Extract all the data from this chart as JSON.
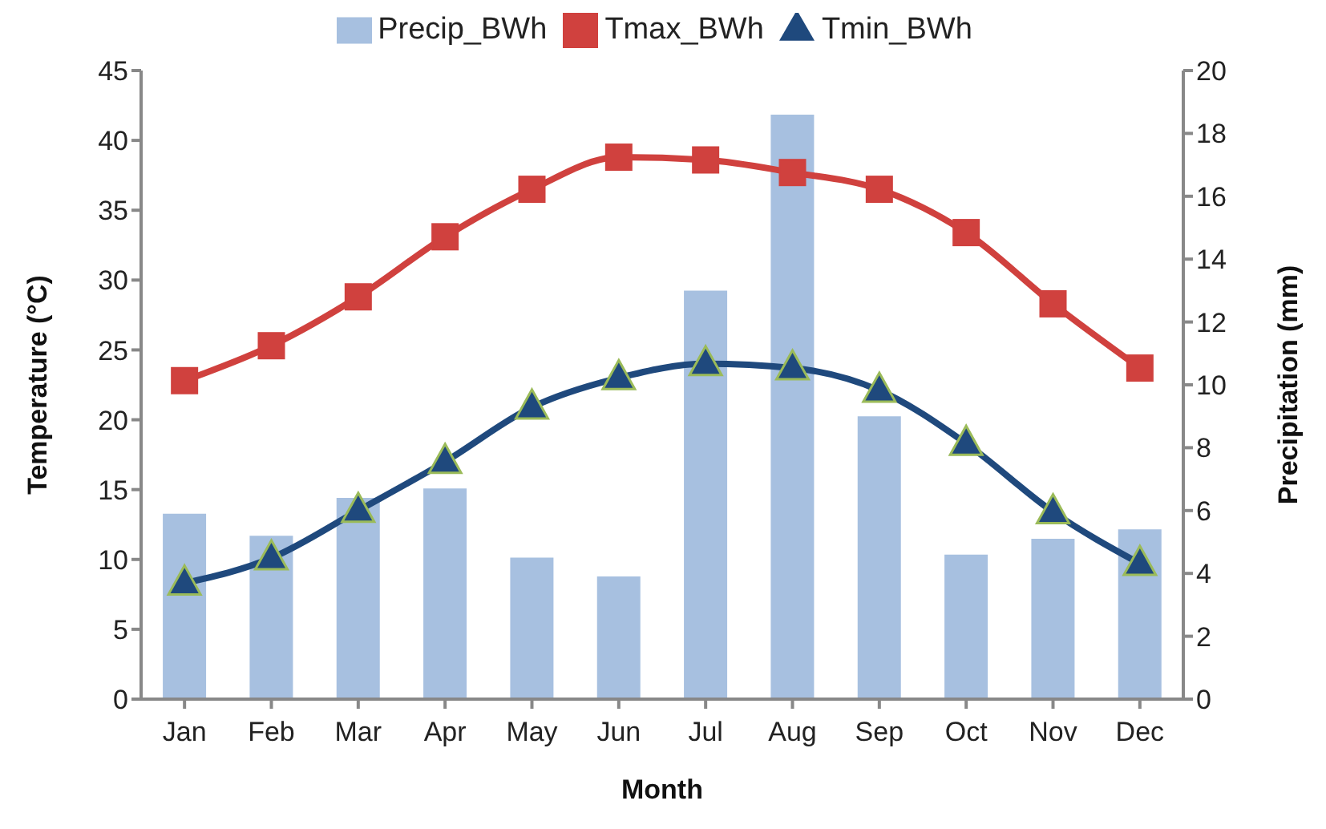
{
  "chart_data": {
    "type": "bar",
    "xlabel": "Month",
    "ylabel": "Temperature (°C)",
    "y2label": "Precipitation (mm)",
    "categories": [
      "Jan",
      "Feb",
      "Mar",
      "Apr",
      "May",
      "Jun",
      "Jul",
      "Aug",
      "Sep",
      "Oct",
      "Nov",
      "Dec"
    ],
    "series": [
      {
        "name": "Precip_BWh",
        "axis": "y2",
        "color": "#a7c0e0",
        "values": [
          5.9,
          5.2,
          6.4,
          6.7,
          4.5,
          3.9,
          13.0,
          18.6,
          9.0,
          4.6,
          5.1,
          5.4
        ]
      },
      {
        "name": "Tmax_BWh",
        "type": "line",
        "marker": "square",
        "color": "#d0413e",
        "values": [
          22.8,
          25.3,
          28.8,
          33.1,
          36.5,
          38.8,
          38.6,
          37.7,
          36.5,
          33.4,
          28.3,
          23.7
        ]
      },
      {
        "name": "Tmin_BWh",
        "type": "line",
        "marker": "triangle",
        "color": "#1f497d",
        "values": [
          8.3,
          10.1,
          13.5,
          17.0,
          20.9,
          23.0,
          24.0,
          23.7,
          22.1,
          18.3,
          13.4,
          9.7
        ]
      }
    ],
    "ylim": [
      0,
      45
    ],
    "yticks": [
      0,
      5,
      10,
      15,
      20,
      25,
      30,
      35,
      40,
      45
    ],
    "y2lim": [
      0,
      20
    ],
    "y2ticks": [
      0,
      2,
      4,
      6,
      8,
      10,
      12,
      14,
      16,
      18,
      20
    ],
    "grid": false,
    "legend": "top"
  }
}
